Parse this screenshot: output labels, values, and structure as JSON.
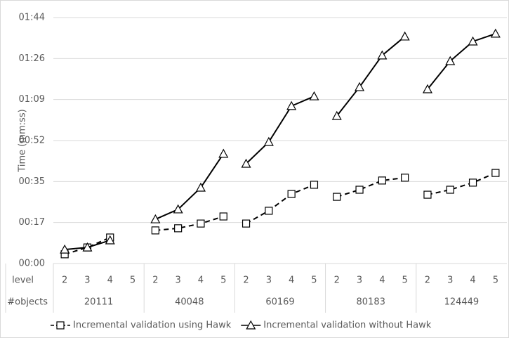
{
  "chart_data": {
    "type": "line",
    "y_label": "Time (mm:ss)",
    "category_row_labels": [
      "level",
      "#objects"
    ],
    "categories": [
      "2",
      "3",
      "4",
      "5",
      "2",
      "3",
      "4",
      "5",
      "2",
      "3",
      "4",
      "5",
      "2",
      "3",
      "4",
      "5",
      "2",
      "3",
      "4",
      "5"
    ],
    "groups": [
      "20111",
      "40048",
      "60169",
      "80183",
      "124449"
    ],
    "ylim": [
      0,
      104
    ],
    "yticks": [
      {
        "value": 0,
        "label": "00:00"
      },
      {
        "value": 17.33,
        "label": "00:17"
      },
      {
        "value": 34.67,
        "label": "00:35"
      },
      {
        "value": 52,
        "label": "00:52"
      },
      {
        "value": 69.33,
        "label": "01:09"
      },
      {
        "value": 86.67,
        "label": "01:26"
      },
      {
        "value": 104,
        "label": "01:44"
      }
    ],
    "grid": true,
    "legend": "bottom",
    "series": [
      {
        "name": "Incremental validation using Hawk",
        "color": "#000000",
        "dash": true,
        "marker": "square",
        "values": [
          3.9,
          6.8,
          11.0,
          null,
          14.0,
          14.9,
          16.9,
          19.9,
          16.9,
          22.3,
          29.4,
          33.3,
          28.2,
          31.2,
          35.1,
          36.3,
          29.1,
          31.2,
          34.2,
          38.3
        ]
      },
      {
        "name": "Incremental validation without Hawk",
        "color": "#000000",
        "dash": false,
        "marker": "triangle",
        "values": [
          5.9,
          6.8,
          9.8,
          null,
          18.7,
          22.9,
          32.1,
          46.4,
          42.2,
          51.4,
          66.6,
          70.7,
          62.4,
          74.6,
          88.0,
          96.0,
          73.7,
          85.6,
          93.9,
          97.2
        ]
      }
    ]
  }
}
